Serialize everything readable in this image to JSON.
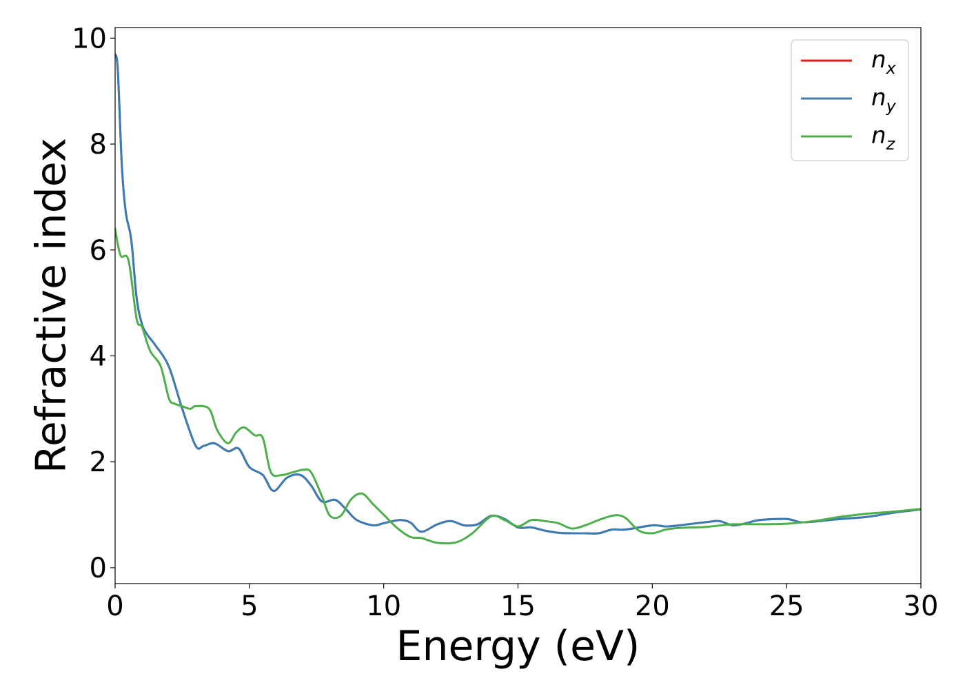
{
  "chart_data": {
    "type": "line",
    "xlabel": "Energy (eV)",
    "ylabel": "Refractive index",
    "xlim": [
      0,
      30
    ],
    "ylim": [
      -0.3,
      10.2
    ],
    "xticks": [
      0,
      5,
      10,
      15,
      20,
      25,
      30
    ],
    "yticks": [
      0,
      2,
      4,
      6,
      8,
      10
    ],
    "grid": false,
    "legend_position": "top-right",
    "series": [
      {
        "name": "n_x",
        "label_base": "n",
        "label_sub": "x",
        "color": "#e41a1c",
        "x": [
          0,
          0.1,
          0.25,
          0.4,
          0.6,
          0.8,
          1.0,
          1.2,
          1.5,
          2.0,
          2.5,
          3.0,
          3.3,
          3.7,
          4.2,
          4.6,
          5.0,
          5.5,
          5.9,
          6.4,
          6.9,
          7.3,
          7.7,
          8.2,
          8.6,
          9.0,
          9.6,
          10.0,
          10.6,
          11.0,
          11.4,
          12.0,
          12.5,
          13.0,
          13.5,
          14.0,
          14.5,
          15.0,
          15.5,
          16.0,
          16.5,
          17.0,
          17.5,
          18.0,
          18.5,
          19.0,
          20.0,
          20.5,
          21.0,
          22.0,
          22.5,
          23.0,
          23.5,
          24.0,
          25.0,
          25.5,
          26.0,
          27.0,
          28.0,
          29.0,
          30.0
        ],
        "y": [
          9.7,
          9.4,
          7.6,
          6.7,
          6.2,
          5.1,
          4.6,
          4.4,
          4.2,
          3.8,
          3.0,
          2.3,
          2.3,
          2.35,
          2.2,
          2.25,
          1.9,
          1.75,
          1.45,
          1.7,
          1.75,
          1.55,
          1.25,
          1.28,
          1.1,
          0.9,
          0.8,
          0.84,
          0.9,
          0.85,
          0.68,
          0.82,
          0.88,
          0.8,
          0.82,
          0.98,
          0.92,
          0.76,
          0.76,
          0.7,
          0.66,
          0.65,
          0.65,
          0.65,
          0.72,
          0.72,
          0.8,
          0.78,
          0.8,
          0.86,
          0.88,
          0.8,
          0.84,
          0.9,
          0.92,
          0.86,
          0.87,
          0.92,
          0.96,
          1.04,
          1.1
        ]
      },
      {
        "name": "n_y",
        "label_base": "n",
        "label_sub": "y",
        "color": "#377eb8",
        "x": [
          0,
          0.1,
          0.25,
          0.4,
          0.6,
          0.8,
          1.0,
          1.2,
          1.5,
          2.0,
          2.5,
          3.0,
          3.3,
          3.7,
          4.2,
          4.6,
          5.0,
          5.5,
          5.9,
          6.4,
          6.9,
          7.3,
          7.7,
          8.2,
          8.6,
          9.0,
          9.6,
          10.0,
          10.6,
          11.0,
          11.4,
          12.0,
          12.5,
          13.0,
          13.5,
          14.0,
          14.5,
          15.0,
          15.5,
          16.0,
          16.5,
          17.0,
          17.5,
          18.0,
          18.5,
          19.0,
          20.0,
          20.5,
          21.0,
          22.0,
          22.5,
          23.0,
          23.5,
          24.0,
          25.0,
          25.5,
          26.0,
          27.0,
          28.0,
          29.0,
          30.0
        ],
        "y": [
          9.7,
          9.4,
          7.6,
          6.7,
          6.2,
          5.1,
          4.6,
          4.4,
          4.2,
          3.8,
          3.0,
          2.3,
          2.3,
          2.35,
          2.2,
          2.25,
          1.9,
          1.75,
          1.45,
          1.7,
          1.75,
          1.55,
          1.25,
          1.28,
          1.1,
          0.9,
          0.8,
          0.84,
          0.9,
          0.85,
          0.68,
          0.82,
          0.88,
          0.8,
          0.82,
          0.98,
          0.92,
          0.76,
          0.76,
          0.7,
          0.66,
          0.65,
          0.65,
          0.65,
          0.72,
          0.72,
          0.8,
          0.78,
          0.8,
          0.86,
          0.88,
          0.8,
          0.84,
          0.9,
          0.92,
          0.86,
          0.87,
          0.92,
          0.96,
          1.04,
          1.1
        ]
      },
      {
        "name": "n_z",
        "label_base": "n",
        "label_sub": "z",
        "color": "#4daf4a",
        "x": [
          0,
          0.2,
          0.5,
          0.8,
          1.0,
          1.3,
          1.7,
          2.0,
          2.2,
          2.5,
          2.8,
          3.0,
          3.5,
          3.8,
          4.2,
          4.5,
          4.8,
          5.2,
          5.5,
          5.8,
          6.2,
          6.6,
          7.0,
          7.3,
          7.7,
          8.0,
          8.4,
          8.8,
          9.2,
          9.6,
          10.0,
          10.5,
          11.0,
          11.4,
          12.0,
          12.7,
          13.3,
          14.0,
          14.5,
          15.0,
          15.5,
          16.0,
          16.5,
          17.0,
          17.5,
          18.0,
          18.6,
          19.0,
          19.5,
          20.0,
          20.5,
          21.0,
          22.0,
          23.0,
          24.0,
          25.0,
          26.0,
          27.0,
          28.0,
          29.0,
          30.0
        ],
        "y": [
          6.4,
          5.9,
          5.8,
          4.7,
          4.55,
          4.1,
          3.8,
          3.2,
          3.1,
          3.05,
          3.0,
          3.05,
          3.0,
          2.6,
          2.35,
          2.55,
          2.65,
          2.5,
          2.45,
          1.8,
          1.75,
          1.8,
          1.85,
          1.8,
          1.35,
          0.98,
          0.98,
          1.3,
          1.4,
          1.2,
          1.0,
          0.75,
          0.58,
          0.56,
          0.47,
          0.48,
          0.65,
          0.97,
          0.9,
          0.78,
          0.9,
          0.88,
          0.84,
          0.74,
          0.8,
          0.9,
          0.99,
          0.94,
          0.7,
          0.65,
          0.72,
          0.75,
          0.77,
          0.82,
          0.82,
          0.83,
          0.88,
          0.96,
          1.02,
          1.06,
          1.11
        ]
      }
    ]
  }
}
